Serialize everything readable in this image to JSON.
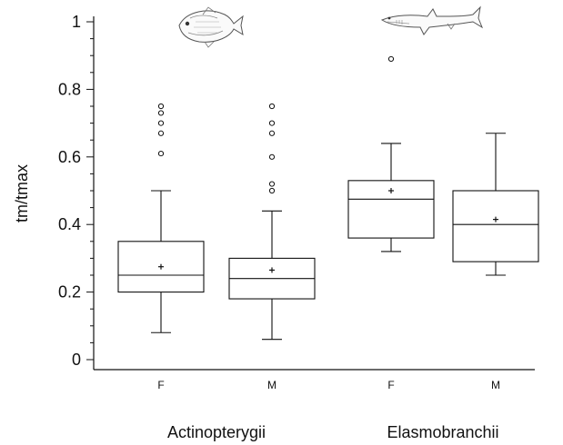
{
  "chart_data": {
    "type": "box",
    "ylabel": "tm/tmax",
    "ylim": [
      0,
      1
    ],
    "yticks": [
      0,
      0.2,
      0.4,
      0.6,
      0.8,
      1
    ],
    "ytick_labels": [
      "0",
      "0.2",
      "0.4",
      "0.6",
      "0.8",
      "1"
    ],
    "groups": [
      {
        "name": "Actinopterygii",
        "icon": "fish-icon"
      },
      {
        "name": "Elasmobranchii",
        "icon": "shark-icon"
      }
    ],
    "boxes": [
      {
        "group": "Actinopterygii",
        "category": "F",
        "whisker_low": 0.08,
        "q1": 0.2,
        "median": 0.25,
        "q3": 0.35,
        "whisker_high": 0.5,
        "mean": 0.275,
        "outliers": [
          0.61,
          0.67,
          0.7,
          0.73,
          0.75
        ]
      },
      {
        "group": "Actinopterygii",
        "category": "M",
        "whisker_low": 0.06,
        "q1": 0.18,
        "median": 0.24,
        "q3": 0.3,
        "whisker_high": 0.44,
        "mean": 0.265,
        "outliers": [
          0.5,
          0.52,
          0.6,
          0.67,
          0.7,
          0.75
        ]
      },
      {
        "group": "Elasmobranchii",
        "category": "F",
        "whisker_low": 0.32,
        "q1": 0.36,
        "median": 0.475,
        "q3": 0.53,
        "whisker_high": 0.64,
        "mean": 0.5,
        "outliers": [
          0.89
        ]
      },
      {
        "group": "Elasmobranchii",
        "category": "M",
        "whisker_low": 0.25,
        "q1": 0.29,
        "median": 0.4,
        "q3": 0.5,
        "whisker_high": 0.67,
        "mean": 0.415,
        "outliers": []
      }
    ]
  }
}
